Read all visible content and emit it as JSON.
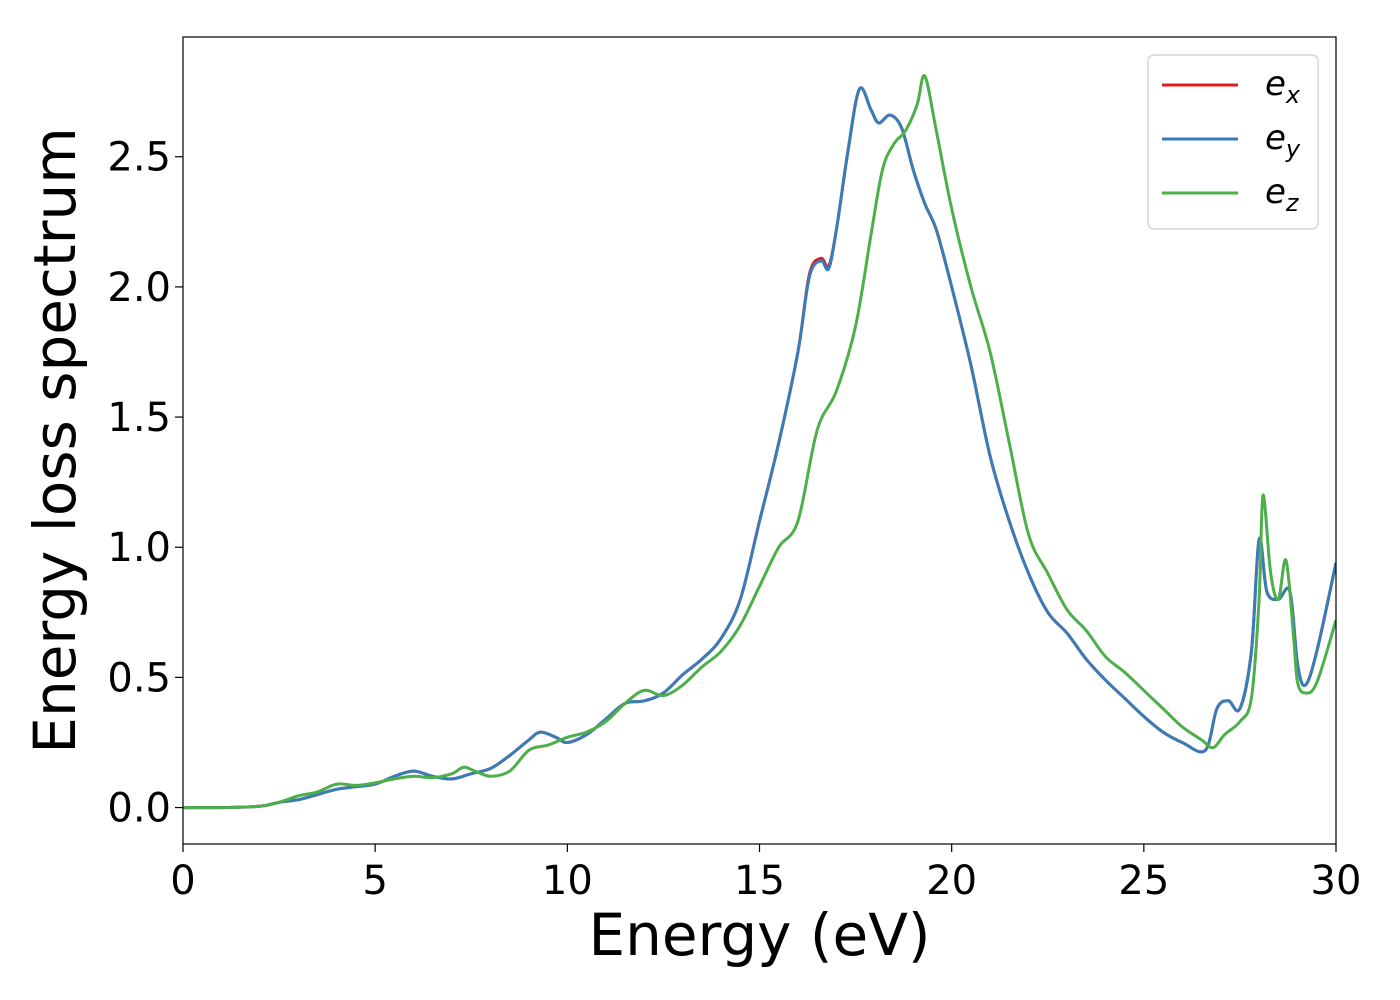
{
  "chart_data": {
    "type": "line",
    "xlabel": "Energy (eV)",
    "ylabel": "Energy loss spectrum",
    "xlim": [
      0,
      30
    ],
    "ylim": [
      -0.14,
      2.96
    ],
    "xticks": [
      0,
      5,
      10,
      15,
      20,
      25,
      30
    ],
    "xtick_labels": [
      "0",
      "5",
      "10",
      "15",
      "20",
      "25",
      "30"
    ],
    "yticks": [
      0.0,
      0.5,
      1.0,
      1.5,
      2.0,
      2.5
    ],
    "ytick_labels": [
      "0.0",
      "0.5",
      "1.0",
      "1.5",
      "2.0",
      "2.5"
    ],
    "grid": false,
    "legend_position": "top-right",
    "series": [
      {
        "name": "e_x",
        "legend_base": "e",
        "legend_sub": "x",
        "color": "#e41a1c",
        "x": [
          0,
          1,
          2,
          2.5,
          3,
          3.5,
          4,
          4.5,
          5,
          5.5,
          6,
          6.5,
          7,
          7.5,
          8,
          8.5,
          9,
          9.3,
          9.7,
          10,
          10.5,
          11,
          11.5,
          12,
          12.5,
          13,
          13.5,
          14,
          14.5,
          15,
          15.5,
          16,
          16.3,
          16.6,
          16.8,
          17,
          17.3,
          17.6,
          17.9,
          18.1,
          18.4,
          18.7,
          19,
          19.3,
          19.6,
          20,
          20.5,
          21,
          21.5,
          22,
          22.5,
          23,
          23.5,
          24,
          24.5,
          25,
          25.5,
          26,
          26.6,
          26.9,
          27.2,
          27.5,
          27.8,
          28,
          28.2,
          28.5,
          28.8,
          29,
          29.2,
          29.5,
          30
        ],
        "values": [
          0,
          0,
          0.005,
          0.02,
          0.03,
          0.05,
          0.07,
          0.08,
          0.09,
          0.12,
          0.14,
          0.12,
          0.11,
          0.13,
          0.15,
          0.2,
          0.26,
          0.29,
          0.27,
          0.25,
          0.28,
          0.34,
          0.4,
          0.41,
          0.44,
          0.51,
          0.57,
          0.65,
          0.8,
          1.1,
          1.4,
          1.75,
          2.05,
          2.11,
          2.08,
          2.22,
          2.52,
          2.76,
          2.68,
          2.63,
          2.66,
          2.61,
          2.45,
          2.32,
          2.22,
          2.0,
          1.7,
          1.35,
          1.1,
          0.9,
          0.75,
          0.67,
          0.57,
          0.49,
          0.42,
          0.35,
          0.29,
          0.25,
          0.22,
          0.38,
          0.41,
          0.38,
          0.6,
          1.03,
          0.83,
          0.8,
          0.83,
          0.55,
          0.47,
          0.6,
          0.94
        ]
      },
      {
        "name": "e_y",
        "legend_base": "e",
        "legend_sub": "y",
        "color": "#377eb8",
        "x": [
          0,
          1,
          2,
          2.5,
          3,
          3.5,
          4,
          4.5,
          5,
          5.5,
          6,
          6.5,
          7,
          7.5,
          8,
          8.5,
          9,
          9.3,
          9.7,
          10,
          10.5,
          11,
          11.5,
          12,
          12.5,
          13,
          13.5,
          14,
          14.5,
          15,
          15.5,
          16,
          16.3,
          16.6,
          16.8,
          17,
          17.3,
          17.6,
          17.9,
          18.1,
          18.4,
          18.7,
          19,
          19.3,
          19.6,
          20,
          20.5,
          21,
          21.5,
          22,
          22.5,
          23,
          23.5,
          24,
          24.5,
          25,
          25.5,
          26,
          26.6,
          26.9,
          27.2,
          27.5,
          27.8,
          28,
          28.2,
          28.5,
          28.8,
          29,
          29.2,
          29.5,
          30
        ],
        "values": [
          0,
          0,
          0.005,
          0.02,
          0.03,
          0.05,
          0.07,
          0.08,
          0.09,
          0.12,
          0.14,
          0.12,
          0.11,
          0.13,
          0.15,
          0.2,
          0.26,
          0.29,
          0.27,
          0.25,
          0.28,
          0.34,
          0.4,
          0.41,
          0.44,
          0.51,
          0.57,
          0.65,
          0.8,
          1.1,
          1.4,
          1.75,
          2.04,
          2.1,
          2.07,
          2.22,
          2.52,
          2.76,
          2.68,
          2.63,
          2.66,
          2.61,
          2.45,
          2.32,
          2.22,
          2.0,
          1.7,
          1.35,
          1.1,
          0.9,
          0.75,
          0.67,
          0.57,
          0.49,
          0.42,
          0.35,
          0.29,
          0.25,
          0.22,
          0.38,
          0.41,
          0.38,
          0.6,
          1.03,
          0.83,
          0.8,
          0.83,
          0.55,
          0.47,
          0.6,
          0.94
        ]
      },
      {
        "name": "e_z",
        "legend_base": "e",
        "legend_sub": "z",
        "color": "#4daf4a",
        "x": [
          0,
          1,
          2,
          2.5,
          3,
          3.5,
          4,
          4.5,
          5,
          5.5,
          6,
          6.5,
          7,
          7.3,
          7.6,
          8,
          8.5,
          9,
          9.5,
          10,
          10.5,
          11,
          11.5,
          12,
          12.5,
          13,
          13.5,
          14,
          14.5,
          15,
          15.5,
          16,
          16.5,
          17,
          17.5,
          17.9,
          18.2,
          18.5,
          18.8,
          19.1,
          19.3,
          19.6,
          20,
          20.5,
          21,
          21.5,
          22,
          22.5,
          23,
          23.5,
          24,
          24.5,
          25,
          25.5,
          26,
          26.5,
          26.8,
          27.1,
          27.5,
          27.8,
          28,
          28.1,
          28.3,
          28.5,
          28.7,
          28.9,
          29,
          29.2,
          29.5,
          30
        ],
        "values": [
          0,
          0,
          0.005,
          0.02,
          0.045,
          0.06,
          0.09,
          0.085,
          0.095,
          0.11,
          0.12,
          0.115,
          0.13,
          0.155,
          0.14,
          0.12,
          0.14,
          0.22,
          0.24,
          0.27,
          0.29,
          0.33,
          0.4,
          0.45,
          0.43,
          0.47,
          0.54,
          0.6,
          0.7,
          0.85,
          1.0,
          1.1,
          1.45,
          1.6,
          1.85,
          2.2,
          2.45,
          2.55,
          2.6,
          2.7,
          2.81,
          2.6,
          2.3,
          2.0,
          1.75,
          1.4,
          1.05,
          0.9,
          0.76,
          0.68,
          0.58,
          0.52,
          0.45,
          0.38,
          0.31,
          0.26,
          0.23,
          0.28,
          0.33,
          0.42,
          0.8,
          1.2,
          0.9,
          0.8,
          0.95,
          0.65,
          0.48,
          0.44,
          0.48,
          0.72
        ]
      }
    ]
  }
}
